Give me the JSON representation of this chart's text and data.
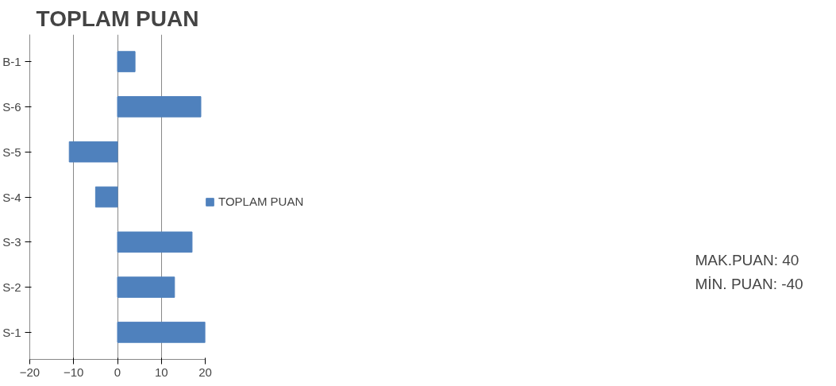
{
  "chart_data": {
    "type": "bar",
    "orientation": "horizontal",
    "title": "TOPLAM PUAN",
    "categories": [
      "B-1",
      "S-6",
      "S-5",
      "S-4",
      "S-3",
      "S-2",
      "S-1"
    ],
    "series": [
      {
        "name": "TOPLAM PUAN",
        "color": "#4f81bd",
        "values": [
          4,
          19,
          -11,
          -5,
          17,
          13,
          20
        ]
      }
    ],
    "xlim": [
      -20,
      20
    ],
    "xticks": [
      -20,
      -10,
      0,
      10,
      20
    ],
    "grid": "x",
    "legend": "right",
    "annotations": [
      "MAK.PUAN: 40",
      "MİN. PUAN: -40"
    ]
  }
}
